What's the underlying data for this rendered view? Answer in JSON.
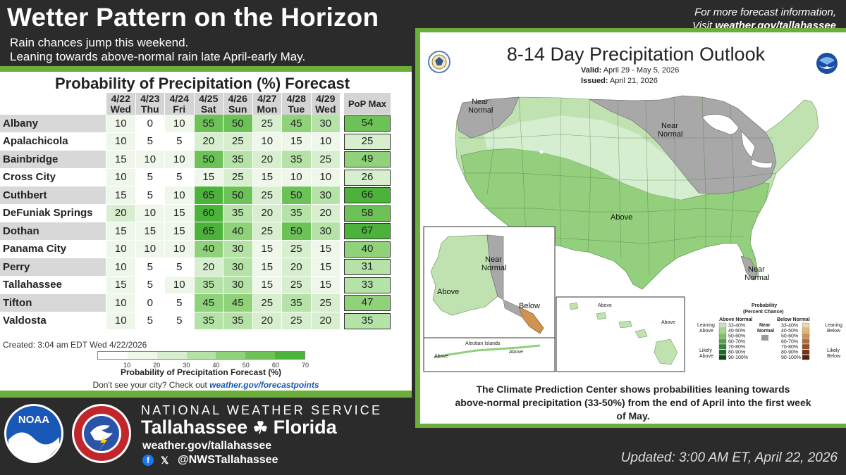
{
  "header": {
    "title": "Wetter Pattern on the Horizon",
    "subtitle_1": "Rain chances jump this weekend.",
    "subtitle_2": "Leaning towards above-normal rain late April-early May.",
    "info_line_1": "For more forecast information,",
    "info_line_2_prefix": "Visit ",
    "info_line_2_link": "weather.gov/tallahassee"
  },
  "pop": {
    "title": "Probability of Precipitation (%) Forecast",
    "days": [
      {
        "date": "4/22",
        "dow": "Wed"
      },
      {
        "date": "4/23",
        "dow": "Thu"
      },
      {
        "date": "4/24",
        "dow": "Fri"
      },
      {
        "date": "4/25",
        "dow": "Sat"
      },
      {
        "date": "4/26",
        "dow": "Sun"
      },
      {
        "date": "4/27",
        "dow": "Mon"
      },
      {
        "date": "4/28",
        "dow": "Tue"
      },
      {
        "date": "4/29",
        "dow": "Wed"
      }
    ],
    "max_header": "PoP Max",
    "rows": [
      {
        "city": "Albany",
        "values": [
          10,
          0,
          10,
          55,
          50,
          25,
          45,
          30
        ],
        "max": 54
      },
      {
        "city": "Apalachicola",
        "values": [
          10,
          5,
          5,
          20,
          25,
          10,
          15,
          10
        ],
        "max": 25
      },
      {
        "city": "Bainbridge",
        "values": [
          15,
          10,
          10,
          50,
          35,
          20,
          35,
          25
        ],
        "max": 49
      },
      {
        "city": "Cross City",
        "values": [
          10,
          5,
          5,
          15,
          25,
          15,
          10,
          10
        ],
        "max": 26
      },
      {
        "city": "Cuthbert",
        "values": [
          15,
          5,
          10,
          65,
          50,
          25,
          50,
          30
        ],
        "max": 66
      },
      {
        "city": "DeFuniak Springs",
        "values": [
          20,
          10,
          15,
          60,
          35,
          20,
          35,
          20
        ],
        "max": 58
      },
      {
        "city": "Dothan",
        "values": [
          15,
          15,
          15,
          65,
          40,
          25,
          50,
          30
        ],
        "max": 67
      },
      {
        "city": "Panama City",
        "values": [
          10,
          10,
          10,
          40,
          30,
          15,
          25,
          15
        ],
        "max": 40
      },
      {
        "city": "Perry",
        "values": [
          10,
          5,
          5,
          20,
          30,
          15,
          20,
          15
        ],
        "max": 31
      },
      {
        "city": "Tallahassee",
        "values": [
          15,
          5,
          10,
          35,
          30,
          15,
          25,
          15
        ],
        "max": 33
      },
      {
        "city": "Tifton",
        "values": [
          10,
          0,
          5,
          45,
          45,
          25,
          35,
          25
        ],
        "max": 47
      },
      {
        "city": "Valdosta",
        "values": [
          10,
          5,
          5,
          35,
          35,
          20,
          25,
          20
        ],
        "max": 35
      }
    ],
    "created": "Created: 3:04 am EDT Wed 4/22/2026",
    "legend_ticks": [
      "10",
      "20",
      "30",
      "40",
      "50",
      "60",
      "70"
    ],
    "legend_label": "Probability of Precipitation Forecast (%)",
    "forecast_points_prefix": "Don't see your city? Check out ",
    "forecast_points_link": "weather.gov/forecastpoints",
    "scale_colors": [
      "#ffffff",
      "#eef7ea",
      "#d7efcf",
      "#b5e2a6",
      "#8fd27a",
      "#6cc257",
      "#4cb33a"
    ]
  },
  "outlook": {
    "title": "8-14 Day Precipitation Outlook",
    "valid_label": "Valid:",
    "valid_value": "April 29 - May 5, 2026",
    "issued_label": "Issued:",
    "issued_value": "April 21, 2026",
    "labels": {
      "near_normal_nw_1": "Near",
      "near_normal_nw_2": "Normal",
      "near_normal_ne_1": "Near",
      "near_normal_ne_2": "Normal",
      "above_center": "Above",
      "near_normal_fl_1": "Near",
      "near_normal_fl_2": "Normal",
      "ak_near_1": "Near",
      "ak_near_2": "Normal",
      "ak_above": "Above",
      "ak_below": "Below",
      "hi_above_1": "Above",
      "hi_above_2": "Above",
      "aleutian": "Aleutian Islands",
      "aleutian_above_1": "Above",
      "aleutian_above_2": "Above"
    },
    "legend": {
      "title_1": "Probability",
      "title_2": "(Percent Chance)",
      "above_normal": "Above Normal",
      "near_normal_1": "Near",
      "near_normal_2": "Normal",
      "below_normal": "Below Normal",
      "leaning_above_1": "Leaning",
      "leaning_above_2": "Above",
      "likely_above_1": "Likely",
      "likely_above_2": "Above",
      "leaning_below_1": "Leaning",
      "leaning_below_2": "Below",
      "likely_below_1": "Likely",
      "likely_below_2": "Below",
      "ranges": [
        "33-40%",
        "40-50%",
        "50-60%",
        "60-70%",
        "70-80%",
        "80-90%",
        "90-100%"
      ],
      "above_colors": [
        "#c6e5bb",
        "#a2d68f",
        "#7bc466",
        "#4fa847",
        "#2f8a35",
        "#196b26",
        "#0a4a15"
      ],
      "below_colors": [
        "#f0d9a0",
        "#e0b872",
        "#d09450",
        "#b86b33",
        "#9a4d23",
        "#7a3416",
        "#5a1f0b"
      ],
      "near_color": "#9a9a9a"
    },
    "caption_1": "The Climate Prediction Center shows probabilities leaning towards",
    "caption_2": "above-normal precipitation (33-50%) from the end of April into the first week",
    "caption_3": "of May."
  },
  "footer": {
    "agency": "NATIONAL WEATHER SERVICE",
    "office_city": "Tallahassee",
    "office_state": "Florida",
    "website": "weather.gov/tallahassee",
    "social_handle": "@NWSTallahassee",
    "updated": "Updated: 3:00 AM ET, April 22, 2026",
    "noaa_text": "NOAA",
    "nws_ring_text": "NATIONAL WEATHER SERVICE"
  }
}
